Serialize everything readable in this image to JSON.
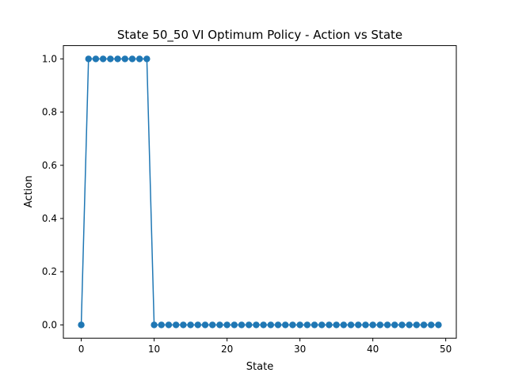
{
  "chart_data": {
    "type": "line",
    "title": "State 50_50 VI Optimum Policy - Action vs State",
    "xlabel": "State",
    "ylabel": "Action",
    "xlim": [
      -2.45,
      51.45
    ],
    "ylim": [
      -0.05,
      1.05
    ],
    "xticks": [
      0,
      10,
      20,
      30,
      40,
      50
    ],
    "yticks": [
      0.0,
      0.2,
      0.4,
      0.6,
      0.8,
      1.0
    ],
    "xtick_labels": [
      "0",
      "10",
      "20",
      "30",
      "40",
      "50"
    ],
    "ytick_labels": [
      "0.0",
      "0.2",
      "0.4",
      "0.6",
      "0.8",
      "1.0"
    ],
    "grid": false,
    "marker": "circle",
    "color": "#1f77b4",
    "series": [
      {
        "x": [
          0,
          1,
          2,
          3,
          4,
          5,
          6,
          7,
          8,
          9,
          10,
          11,
          12,
          13,
          14,
          15,
          16,
          17,
          18,
          19,
          20,
          21,
          22,
          23,
          24,
          25,
          26,
          27,
          28,
          29,
          30,
          31,
          32,
          33,
          34,
          35,
          36,
          37,
          38,
          39,
          40,
          41,
          42,
          43,
          44,
          45,
          46,
          47,
          48,
          49
        ],
        "y": [
          0,
          1,
          1,
          1,
          1,
          1,
          1,
          1,
          1,
          1,
          0,
          0,
          0,
          0,
          0,
          0,
          0,
          0,
          0,
          0,
          0,
          0,
          0,
          0,
          0,
          0,
          0,
          0,
          0,
          0,
          0,
          0,
          0,
          0,
          0,
          0,
          0,
          0,
          0,
          0,
          0,
          0,
          0,
          0,
          0,
          0,
          0,
          0,
          0,
          0
        ]
      }
    ]
  }
}
